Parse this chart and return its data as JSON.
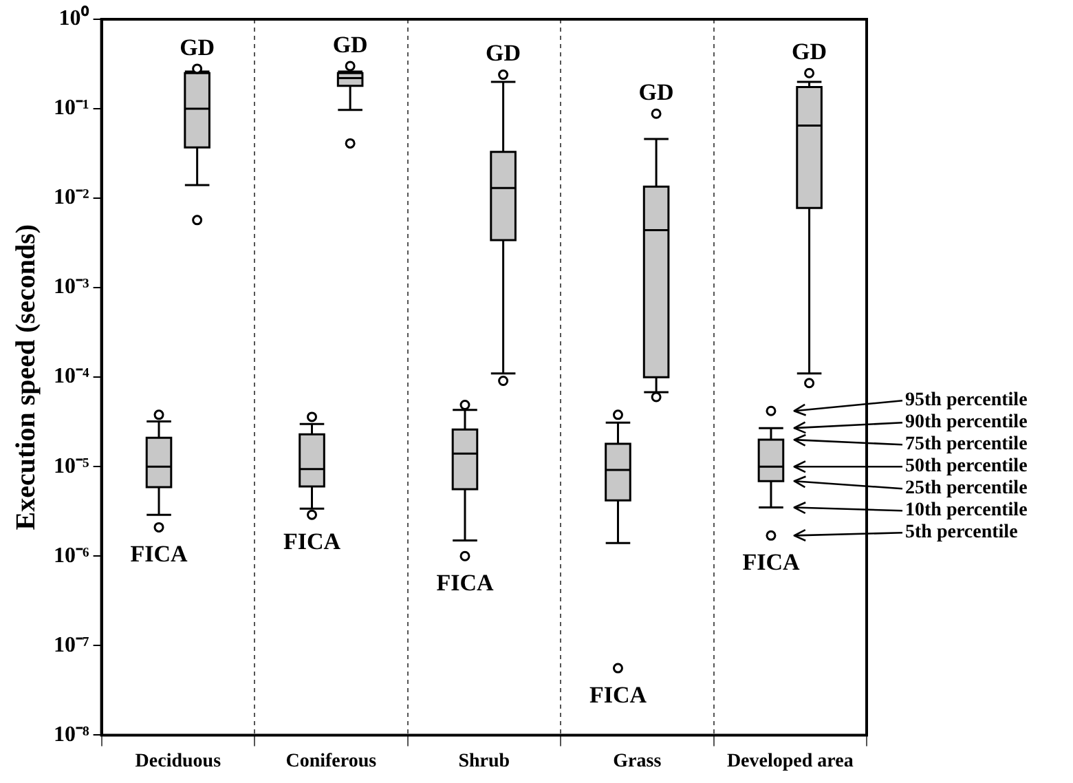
{
  "chart_data": {
    "type": "box",
    "ylabel": "Execution speed (seconds)",
    "categories": [
      "Deciduous",
      "Coniferous",
      "Shrub",
      "Grass",
      "Developed area"
    ],
    "series": [
      {
        "name": "FICA",
        "color": "#c8c8c8",
        "boxes": [
          {
            "low": 2.9e-06,
            "q1": 5.9e-06,
            "median": 1e-05,
            "q3": 2.1e-05,
            "high": 3.2e-05,
            "outliers": [
              2.1e-06,
              3.8e-05
            ]
          },
          {
            "low": 3.4e-06,
            "q1": 6e-06,
            "median": 9.4e-06,
            "q3": 2.3e-05,
            "high": 3e-05,
            "outliers": [
              2.9e-06,
              3.6e-05
            ]
          },
          {
            "low": 1.5e-06,
            "q1": 5.6e-06,
            "median": 1.4e-05,
            "q3": 2.6e-05,
            "high": 4.3e-05,
            "outliers": [
              1e-06,
              4.9e-05
            ]
          },
          {
            "low": 1.4e-06,
            "q1": 4.2e-06,
            "median": 9.2e-06,
            "q3": 1.8e-05,
            "high": 3.1e-05,
            "outliers": [
              5.6e-08,
              3.8e-05
            ]
          },
          {
            "low": 3.5e-06,
            "q1": 6.9e-06,
            "median": 1e-05,
            "q3": 2e-05,
            "high": 2.7e-05,
            "outliers": [
              1.7e-06,
              4.2e-05
            ]
          }
        ]
      },
      {
        "name": "GD",
        "color": "#c8c8c8",
        "boxes": [
          {
            "low": 0.014,
            "q1": 0.037,
            "median": 0.1,
            "q3": 0.25,
            "high": 0.26,
            "outliers": [
              0.0057,
              0.28
            ]
          },
          {
            "low": 0.097,
            "q1": 0.18,
            "median": 0.22,
            "q3": 0.25,
            "high": 0.26,
            "outliers": [
              0.041,
              0.3
            ]
          },
          {
            "low": 0.00011,
            "q1": 0.0034,
            "median": 0.013,
            "q3": 0.033,
            "high": 0.2,
            "outliers": [
              9.1e-05,
              0.24
            ]
          },
          {
            "low": 6.8e-05,
            "q1": 0.0001,
            "median": 0.0044,
            "q3": 0.0135,
            "high": 0.046,
            "outliers": [
              6e-05,
              0.088
            ]
          },
          {
            "low": 0.00011,
            "q1": 0.0078,
            "median": 0.065,
            "q3": 0.175,
            "high": 0.2,
            "outliers": [
              8.6e-05,
              0.25
            ]
          }
        ]
      }
    ],
    "ylim": [
      1e-08,
      1
    ],
    "yticks": [
      {
        "value": 1e-08,
        "label": "10⁻⁸"
      },
      {
        "value": 1e-07,
        "label": "10⁻⁷"
      },
      {
        "value": 1e-06,
        "label": "10⁻⁶"
      },
      {
        "value": 1e-05,
        "label": "10⁻⁵"
      },
      {
        "value": 0.0001,
        "label": "10⁻⁴"
      },
      {
        "value": 0.001,
        "label": "10⁻³"
      },
      {
        "value": 0.01,
        "label": "10⁻²"
      },
      {
        "value": 0.1,
        "label": "10⁻¹"
      },
      {
        "value": 1,
        "label": "10⁰"
      }
    ],
    "log": true,
    "grid": "x",
    "legend": false,
    "annotations": [
      "95th percentile",
      "90th percentile",
      "75th percentile",
      "50th percentile",
      "25th percentile",
      "10th percentile",
      "5th percentile"
    ]
  }
}
